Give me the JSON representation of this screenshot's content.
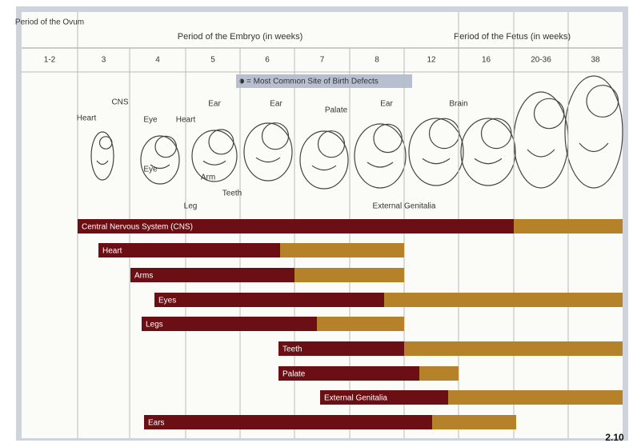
{
  "header": {
    "ovum": "Period of the Ovum",
    "embryo": "Period of the Embryo (in weeks)",
    "fetus": "Period of the Fetus (in weeks)"
  },
  "weeks": [
    "1-2",
    "3",
    "4",
    "5",
    "6",
    "7",
    "8",
    "12",
    "16",
    "20-36",
    "38"
  ],
  "legend": "= Most Common Site of Birth Defects",
  "annotations": [
    "Heart",
    "CNS",
    "Eye",
    "Heart",
    "Ear",
    "Ear",
    "Palate",
    "Ear",
    "Brain",
    "Eye",
    "Arm",
    "Leg",
    "Teeth",
    "External Genitalia"
  ],
  "bars": [
    "Central Nervous System (CNS)",
    "Heart",
    "Arms",
    "Eyes",
    "Legs",
    "Teeth",
    "Palate",
    "External Genitalia",
    "Ears"
  ],
  "page_number": "2.10"
}
